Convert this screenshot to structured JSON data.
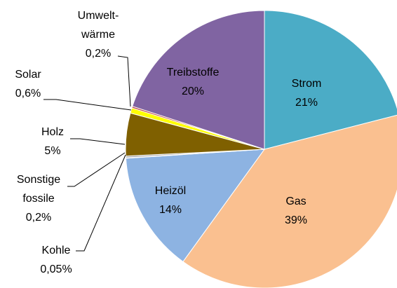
{
  "chart_data": {
    "type": "pie",
    "categories": [
      "Strom",
      "Gas",
      "Heizöl",
      "Kohle",
      "Sonstige\nfossile",
      "Holz",
      "Solar",
      "Umwelt-\nwärme",
      "Treibstoffe"
    ],
    "values": [
      21,
      39,
      14,
      0.05,
      0.2,
      5,
      0.6,
      0.2,
      20
    ],
    "value_labels": [
      "21%",
      "39%",
      "14%",
      "0,05%",
      "0,2%",
      "5%",
      "0,6%",
      "0,2%",
      "20%"
    ],
    "colors": [
      "#4bacc6",
      "#fac090",
      "#8db3e2",
      "#4f6228",
      "#a6a6a6",
      "#7f6000",
      "#ffff00",
      "#c0504d",
      "#8064a2"
    ]
  }
}
